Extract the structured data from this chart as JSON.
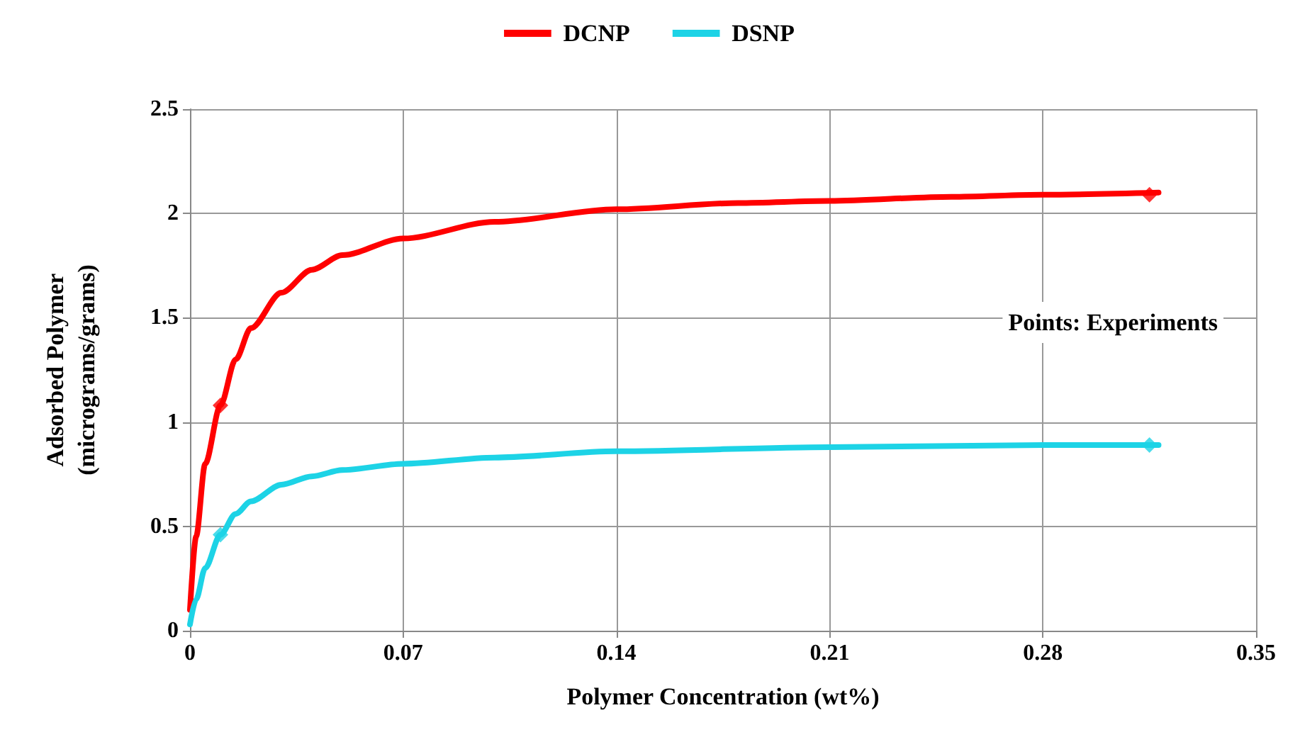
{
  "chart_data": {
    "type": "line",
    "xlabel": "Polymer Concentration (wt%)",
    "ylabel": "Adsorbed Polymer\n(micrograms/grams)",
    "xlim": [
      0,
      0.35
    ],
    "xticks": [
      0,
      0.07,
      0.14,
      0.21,
      0.28,
      0.35
    ],
    "ylim": [
      0,
      2.5
    ],
    "yticks": [
      0,
      0.5,
      1,
      1.5,
      2,
      2.5
    ],
    "grid": true,
    "legend": "top",
    "annotations": [
      "Points: Experiments"
    ],
    "series": [
      {
        "name": "DCNP",
        "marker": "none",
        "color": "#ff0000",
        "x": [
          0,
          0.002,
          0.005,
          0.01,
          0.015,
          0.02,
          0.03,
          0.04,
          0.05,
          0.07,
          0.1,
          0.14,
          0.18,
          0.21,
          0.25,
          0.28,
          0.318
        ],
        "values": [
          0.1,
          0.45,
          0.8,
          1.08,
          1.3,
          1.45,
          1.62,
          1.73,
          1.8,
          1.88,
          1.96,
          2.02,
          2.05,
          2.06,
          2.08,
          2.09,
          2.1
        ]
      },
      {
        "name": "DSNP",
        "marker": "none",
        "color": "#1dd3e6",
        "x": [
          0,
          0.002,
          0.005,
          0.01,
          0.015,
          0.02,
          0.03,
          0.04,
          0.05,
          0.07,
          0.1,
          0.14,
          0.21,
          0.28,
          0.318
        ],
        "values": [
          0.03,
          0.15,
          0.3,
          0.46,
          0.56,
          0.62,
          0.7,
          0.74,
          0.77,
          0.8,
          0.83,
          0.86,
          0.88,
          0.89,
          0.89
        ]
      },
      {
        "type": "scatter",
        "marker": "diamond",
        "color": "#ff0000",
        "x": [
          0.01,
          0.315
        ],
        "values": [
          1.08,
          2.09
        ]
      },
      {
        "type": "scatter",
        "marker": "diamond",
        "color": "#1dd3e6",
        "x": [
          0.01,
          0.315
        ],
        "values": [
          0.46,
          0.89
        ]
      }
    ]
  }
}
